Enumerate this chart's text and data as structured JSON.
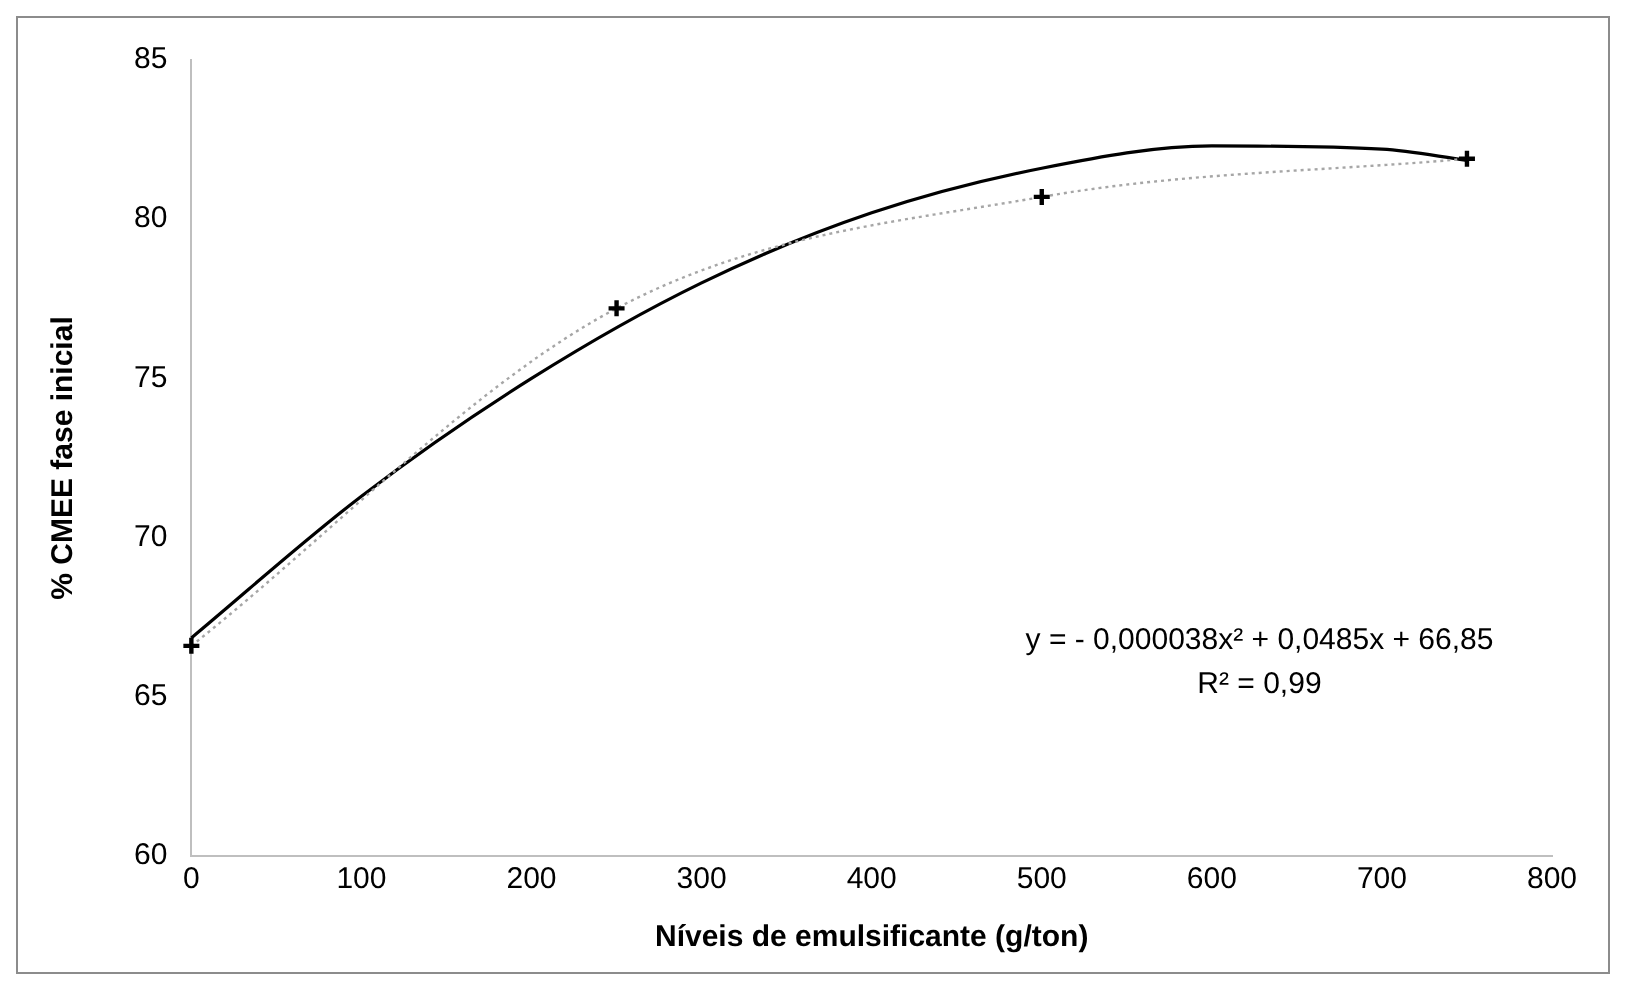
{
  "chart_data": {
    "type": "line",
    "xlabel": "Níveis de emulsificante (g/ton)",
    "ylabel": "% CMEE fase inicial",
    "series": [
      {
        "color": "#a6a6a6",
        "x": [
          0,
          250,
          500,
          750
        ],
        "values": [
          66.6,
          77.2,
          80.7,
          81.9
        ],
        "marker": "cross",
        "line_style": "dotted"
      },
      {
        "color": "#000000",
        "x": [
          0,
          100,
          200,
          300,
          400,
          500,
          600,
          700,
          750
        ],
        "values": [
          66.85,
          71.3,
          75.0,
          78.0,
          80.2,
          81.6,
          82.3,
          82.2,
          81.85
        ],
        "marker": "none",
        "line_style": "solid"
      }
    ],
    "xlim": [
      0,
      800
    ],
    "xticks": [
      0,
      100,
      200,
      300,
      400,
      500,
      600,
      700,
      800
    ],
    "ylim": [
      60,
      85
    ],
    "yticks": [
      60,
      65,
      70,
      75,
      80,
      85
    ],
    "grid": false,
    "legend": false,
    "annotations": [
      "y = - 0,000038x² + 0,0485x + 66,85",
      "R² = 0,99"
    ]
  }
}
